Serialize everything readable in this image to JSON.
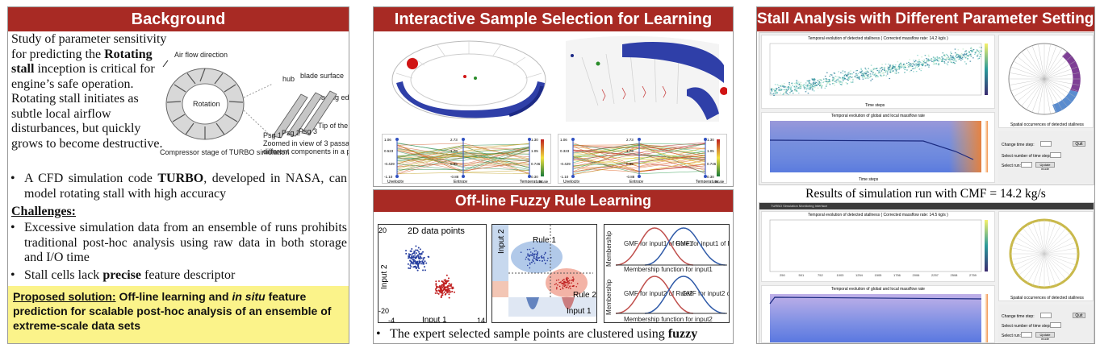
{
  "panels": {
    "background": {
      "title": "Background",
      "intro_lines": [
        "Study of parameter sensitivity",
        "for predicting the ",
        "Rotating",
        "stall",
        " inception is critical for",
        "engine’s safe operation.",
        "Rotating stall initiates as",
        "subtle local airflow",
        "disturbances, but quickly",
        "grows to become destructive."
      ],
      "figure": {
        "air_flow": "Air flow direction",
        "rotation": "Rotation",
        "hub": "hub",
        "blade_surface": "blade surface",
        "leading_edge": "Leading edge",
        "psg1": "Psg 1",
        "psg2": "Psg 2",
        "psg3": "Psg 3",
        "tip": "Tip of the blade",
        "caption_left": "Compressor stage of TURBO simulation",
        "caption_right_1": "Zoomed in view of 3 passages and",
        "caption_right_2": "different components in a passage"
      },
      "bullet1_a": "A CFD simulation code ",
      "bullet1_b": "TURBO",
      "bullet1_c": ", developed in NASA, can model rotating stall with high accuracy",
      "challenges_title": "Challenges:",
      "challenge1": "Excessive simulation data from an ensemble of runs prohibits traditional post-hoc analysis using raw data in both storage and I/O time",
      "challenge2_a": "Stall cells lack ",
      "challenge2_b": "precise",
      "challenge2_c": " feature descriptor",
      "solution_label": "Proposed solution:",
      "solution_a": " Off-line learning and ",
      "solution_b": "in situ",
      "solution_c": " feature prediction for scalable post-hoc analysis of an ensemble of extreme-scale data sets"
    },
    "interactive": {
      "title": "Interactive Sample Selection for Learning",
      "pc_axes": [
        "Uvelocity",
        "Entropy",
        "Temperature"
      ],
      "pc_vals_left": [
        "1.06",
        "0.523",
        "-0.429",
        "-1.10",
        "2.73",
        "1.79",
        "0.85",
        "-0.88",
        "1.30",
        "1.05",
        "0.746",
        "0.30"
      ],
      "pc_vals_right": [
        "1.06",
        "0.323",
        "-0.429",
        "-1.10",
        "2.73",
        "1.79",
        "0.85",
        "-0.88",
        "1.30",
        "1.05",
        "0.746",
        "0.30"
      ],
      "scale_label": "Scale"
    },
    "fuzzy": {
      "title": "Off-line Fuzzy Rule Learning",
      "scatter_title": "2D data points",
      "input1": "Input 1",
      "input2": "Input 2",
      "y_max": "20",
      "y_min": "-20",
      "x_min": "-4",
      "x_max": "14",
      "rule1": "Rule 1",
      "rule2": "Rule 2",
      "gmf_in1_r1": "GMF for input1 of Rule1",
      "gmf_in1_r2": "GMF for input1 of Rule2",
      "gmf_in2_r2": "GMF for input2 of Rule2",
      "gmf_in2_r1": "GMF for input2 of Rule1",
      "mf_in1": "Membership function for input1",
      "mf_in2": "Membership function for input2",
      "membership": "Membership",
      "bullet_a": "The expert selected sample points are clustered using ",
      "bullet_b": "fuzzy"
    },
    "stall": {
      "title": "Stall Analysis with Different Parameter Settings",
      "chart1_title": "Temporal evolution of detected stallness ( Corrected massflow rate: 14.2 kg/s )",
      "chart2_title": "Temporal evolution of global and local massflow rate",
      "polar_caption": "Spatial occurrences of detected stallness",
      "time_steps": "Time steps",
      "change_time_step": "Change time step:",
      "select_num_steps": "Select number of time steps:",
      "select_run": "Select run:",
      "quit": "Quit",
      "update_mode": "Update mode",
      "caption_14_2": "Results of simulation run with CMF = 14.2 kg/s",
      "window_title": "TURBO Simulation Monitoring Interface",
      "chart3_title": "Temporal evolution of detected stallness ( Corrected massflow rate: 14.5 kg/s )",
      "chart4_title": "Temporal evolution of global and local massflow rate",
      "x_ticks": [
        "250",
        "501",
        "752",
        "1003",
        "1254",
        "1505",
        "1756",
        "2006",
        "2257",
        "2508",
        "2759"
      ]
    }
  }
}
